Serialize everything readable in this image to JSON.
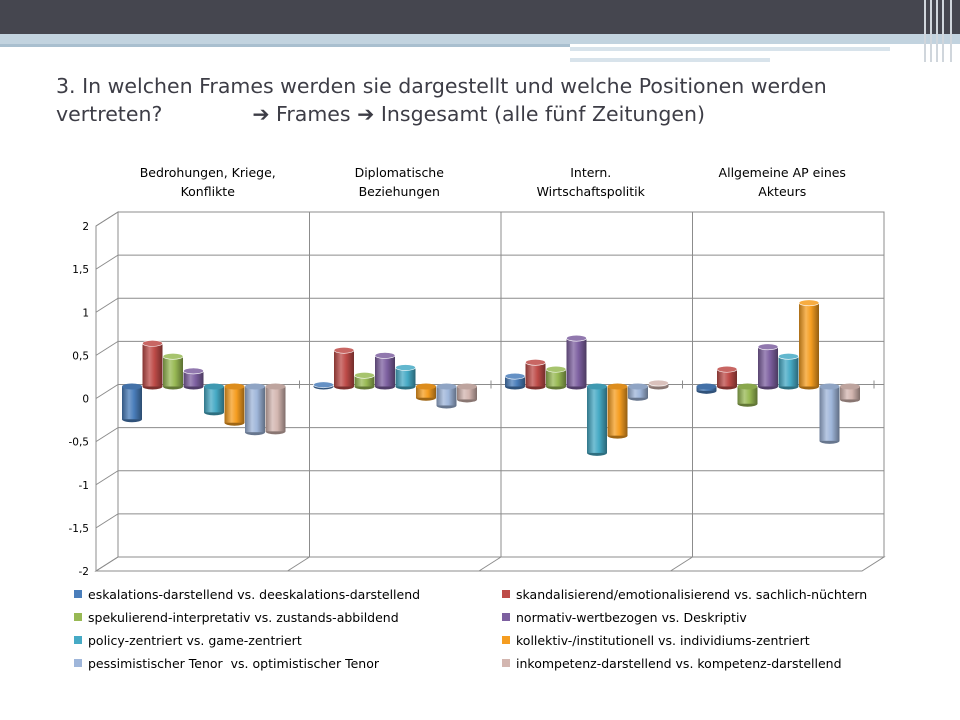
{
  "title": {
    "line1": "3. In welchen Frames werden sie dargestellt und welche Positionen werden",
    "line2_start": "vertreten?",
    "arrow": "➔",
    "frames": "Frames",
    "insgesamt": "Insgesamt (alle fünf Zeitungen)"
  },
  "colors": {
    "top_bar": "#45464f",
    "accent": "#c2d3df",
    "title_text": "#3d3d46"
  },
  "chart_data": {
    "type": "bar",
    "categories": [
      [
        "Bedrohungen, Kriege,",
        "Konflikte"
      ],
      [
        "Diplomatische",
        "Beziehungen"
      ],
      [
        "Intern.",
        "Wirtschaftspolitik"
      ],
      [
        "Allgemeine AP eines",
        "Akteurs"
      ]
    ],
    "ylim": [
      -2,
      2
    ],
    "yticks": [
      "-2",
      "-1,5",
      "-1",
      "-0,5",
      "0",
      "0,5",
      "1",
      "1,5",
      "2"
    ],
    "ytick_values": [
      -2,
      -1.5,
      -1,
      -0.5,
      0,
      0.5,
      1,
      1.5,
      2
    ],
    "grid": true,
    "legend_position": "bottom",
    "series": [
      {
        "name": "eskalations-darstellend vs. deeskalations-darstellend",
        "color": "#4a7ebb",
        "values": [
          -0.38,
          0.02,
          0.12,
          -0.05
        ]
      },
      {
        "name": "skandalisierend/emotionalisierend vs. sachlich-nüchtern",
        "color": "#be4b48",
        "values": [
          0.5,
          0.42,
          0.28,
          0.2
        ]
      },
      {
        "name": "spekulierend-interpretativ vs. zustands-abbildend",
        "color": "#98b954",
        "values": [
          0.35,
          0.13,
          0.2,
          -0.2
        ]
      },
      {
        "name": "normativ-wertbezogen vs. Deskriptiv",
        "color": "#7d60a0",
        "values": [
          0.18,
          0.36,
          0.56,
          0.46
        ]
      },
      {
        "name": "policy-zentriert vs. game-zentriert",
        "color": "#46aac5",
        "values": [
          -0.3,
          0.22,
          -0.77,
          0.35
        ]
      },
      {
        "name": "kollektiv-/institutionell vs. individiums-zentriert",
        "color": "#f59d20",
        "values": [
          -0.42,
          -0.13,
          -0.57,
          0.97
        ]
      },
      {
        "name": "pessimistischer Tenor  vs. optimistischer Tenor",
        "color": "#9fb6da",
        "values": [
          -0.53,
          -0.22,
          -0.13,
          -0.63
        ]
      },
      {
        "name": "inkompetenz-darstellend vs. kompetenz-darstellend",
        "color": "#d3b6b0",
        "values": [
          -0.52,
          -0.15,
          0.04,
          -0.15
        ]
      }
    ]
  }
}
